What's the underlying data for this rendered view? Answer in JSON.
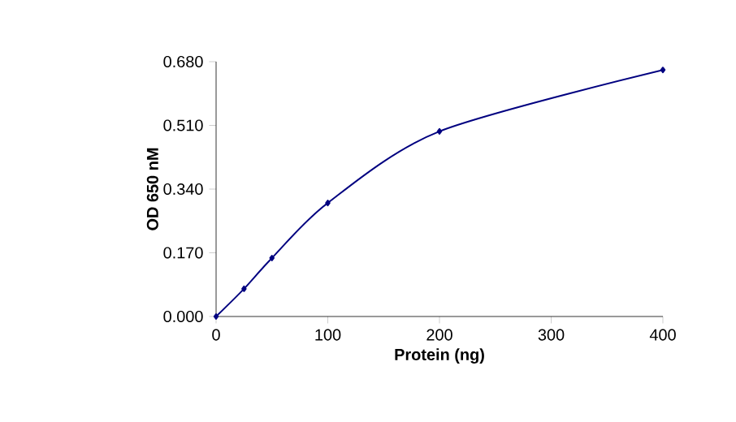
{
  "chart_data": {
    "type": "line",
    "xlabel": "Protein (ng)",
    "ylabel": "OD 650 nM",
    "x": [
      0,
      25,
      50,
      100,
      200,
      400
    ],
    "series": [
      {
        "color": "#000080",
        "values": [
          0,
          0.074,
          0.156,
          0.303,
          0.494,
          0.658
        ]
      }
    ],
    "xlim": [
      0,
      400
    ],
    "ylim": [
      0,
      0.68
    ],
    "xticks": [
      0,
      100,
      200,
      300,
      400
    ],
    "yticks": [
      {
        "value": 0,
        "label": "0.000"
      },
      {
        "value": 0.17,
        "label": "0.170"
      },
      {
        "value": 0.34,
        "label": "0.340"
      },
      {
        "value": 0.51,
        "label": "0.510"
      },
      {
        "value": 0.68,
        "label": "0.680"
      }
    ],
    "marker": "diamond",
    "line_style": "solid",
    "grid": false
  }
}
